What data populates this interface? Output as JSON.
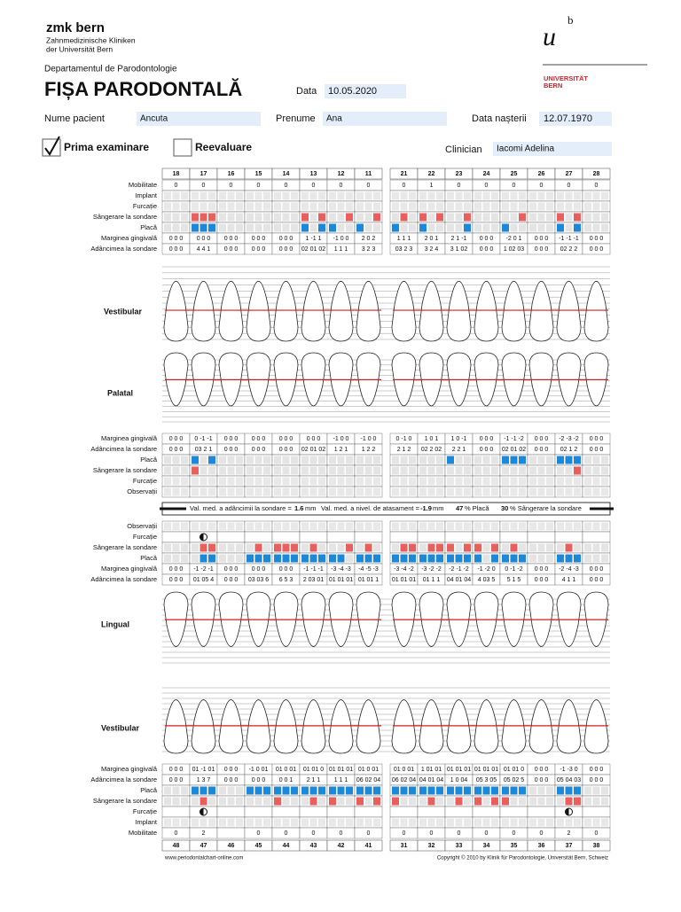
{
  "header": {
    "brand": "zmk bern",
    "clinic_line1": "Zahnmedizinische Kliniken",
    "clinic_line2": "der Universität Bern",
    "logo_u": "u",
    "logo_b": "b",
    "university": "UNIVERSITÄT",
    "university_city": "BERN",
    "department": "Departamentul de Parodontologie",
    "title": "FIȘA PARODONTALĂ"
  },
  "form": {
    "date_label": "Data",
    "date": "10.05.2020",
    "name_label": "Nume pacient",
    "name": "Ancuta",
    "first_name_label": "Prenume",
    "first_name": "Ana",
    "birth_label": "Data nașterii",
    "birth_date": "12.07.1970",
    "first_exam": "Prima examinare",
    "reevaluation": "Reevaluare",
    "clinician_label": "Clinician",
    "clinician": "Iacomi Adelina"
  },
  "upper": {
    "teeth": [
      "18",
      "17",
      "16",
      "15",
      "14",
      "13",
      "12",
      "11",
      "21",
      "22",
      "23",
      "24",
      "25",
      "26",
      "27",
      "28"
    ],
    "vestibular_label": "Vestibular",
    "palatal_label": "Palatal",
    "rows_top": [
      {
        "label": "Mobilitate",
        "values": [
          0,
          0,
          0,
          0,
          0,
          0,
          0,
          0,
          0,
          1,
          0,
          0,
          0,
          0,
          0,
          0
        ]
      },
      {
        "label": "Implant"
      },
      {
        "label": "Furcație"
      },
      {
        "label": "Sângerare la sondare",
        "color": "#e8605e",
        "sites": [
          [
            0,
            0,
            0
          ],
          [
            1,
            1,
            1
          ],
          [
            0,
            0,
            0
          ],
          [
            0,
            0,
            0
          ],
          [
            0,
            0,
            0
          ],
          [
            1,
            0,
            1
          ],
          [
            0,
            0,
            1
          ],
          [
            0,
            0,
            1
          ],
          [
            0,
            1,
            0
          ],
          [
            1,
            0,
            1
          ],
          [
            0,
            0,
            1
          ],
          [
            0,
            0,
            0
          ],
          [
            0,
            0,
            1
          ],
          [
            0,
            0,
            0
          ],
          [
            1,
            0,
            1
          ],
          [
            0,
            0,
            0
          ]
        ]
      },
      {
        "label": "Placă",
        "color": "#1e88d8",
        "sites": [
          [
            0,
            0,
            0
          ],
          [
            1,
            1,
            1
          ],
          [
            0,
            0,
            0
          ],
          [
            0,
            0,
            0
          ],
          [
            0,
            0,
            0
          ],
          [
            1,
            0,
            1
          ],
          [
            1,
            0,
            0
          ],
          [
            1,
            0,
            0
          ],
          [
            1,
            0,
            0
          ],
          [
            1,
            0,
            0
          ],
          [
            0,
            0,
            1
          ],
          [
            0,
            0,
            0
          ],
          [
            1,
            0,
            0
          ],
          [
            0,
            0,
            0
          ],
          [
            1,
            0,
            1
          ],
          [
            0,
            0,
            0
          ]
        ]
      },
      {
        "label": "Marginea gingivală",
        "values": [
          "0 0 0",
          "0 0 0",
          "0 0 0",
          "0 0 0",
          "0 0 0",
          "1 -1 1",
          "-1 0 0",
          "2 0 2",
          "1 1 1",
          "2 0 1",
          "2 1 -1",
          "0 0 0",
          "-2 0 1",
          "0 0 0",
          "-1 -1 -1",
          "0 0 0"
        ]
      },
      {
        "label": "Adâncimea la sondare",
        "values": [
          "0 0 0",
          "4 4 1",
          "0 0 0",
          "0 0 0",
          "0 0 0",
          "02 01 02",
          "1 1 1",
          "3 2 3",
          "03 2 3",
          "3 2 4",
          "3 1 02",
          "0 0 0",
          "1 02 03",
          "0 0 0",
          "02 2 2",
          "0 0 0"
        ]
      }
    ],
    "rows_palatal": [
      {
        "label": "Marginea gingivală",
        "values": [
          "0 0 0",
          "0 -1 -1",
          "0 0 0",
          "0 0 0",
          "0 0 0",
          "0 0 0",
          "-1 0 0",
          "-1 0 0",
          "0 -1 0",
          "1 0 1",
          "1 0 -1",
          "0 0 0",
          "-1 -1 -2",
          "0 0 0",
          "-2 -3 -2",
          "0 0 0"
        ]
      },
      {
        "label": "Adâncimea la sondare",
        "values": [
          "0 0 0",
          "03 2 1",
          "0 0 0",
          "0 0 0",
          "0 0 0",
          "02 01 02",
          "1 2 1",
          "1 2 2",
          "2 1 2",
          "02 2 02",
          "2 2 1",
          "0 0 0",
          "02 01 02",
          "0 0 0",
          "02 1 2",
          "0 0 0"
        ]
      },
      {
        "label": "Placă",
        "color": "#1e88d8",
        "sites": [
          [
            0,
            0,
            0
          ],
          [
            1,
            0,
            1
          ],
          [
            0,
            0,
            0
          ],
          [
            0,
            0,
            0
          ],
          [
            0,
            0,
            0
          ],
          [
            0,
            0,
            0
          ],
          [
            0,
            0,
            0
          ],
          [
            0,
            0,
            0
          ],
          [
            0,
            0,
            0
          ],
          [
            0,
            0,
            0
          ],
          [
            1,
            0,
            0
          ],
          [
            0,
            0,
            0
          ],
          [
            1,
            1,
            1
          ],
          [
            0,
            0,
            0
          ],
          [
            1,
            1,
            1
          ],
          [
            0,
            0,
            0
          ]
        ]
      },
      {
        "label": "Sângerare la sondare",
        "color": "#e8605e",
        "sites": [
          [
            0,
            0,
            0
          ],
          [
            1,
            0,
            0
          ],
          [
            0,
            0,
            0
          ],
          [
            0,
            0,
            0
          ],
          [
            0,
            0,
            0
          ],
          [
            0,
            0,
            0
          ],
          [
            0,
            0,
            0
          ],
          [
            0,
            0,
            0
          ],
          [
            0,
            0,
            0
          ],
          [
            0,
            0,
            0
          ],
          [
            0,
            0,
            0
          ],
          [
            0,
            0,
            0
          ],
          [
            0,
            0,
            0
          ],
          [
            0,
            0,
            0
          ],
          [
            0,
            0,
            1
          ],
          [
            0,
            0,
            0
          ]
        ]
      },
      {
        "label": "Furcație"
      },
      {
        "label": "Observații"
      }
    ]
  },
  "summary": {
    "depth_label": "Val. med. a adâncimii la sondare =",
    "depth_value": 1.6,
    "depth_unit": "mm",
    "attach_label": "Val. med. a nivel. de atasament =",
    "attach_value": -1.9,
    "attach_unit": "mm",
    "plaque_value": 47,
    "plaque_label": "% Placă",
    "bleeding_value": 30,
    "bleeding_label": "% Sângerare la sondare"
  },
  "lower": {
    "teeth": [
      "48",
      "47",
      "46",
      "45",
      "44",
      "43",
      "42",
      "41",
      "31",
      "32",
      "33",
      "34",
      "35",
      "36",
      "37",
      "38"
    ],
    "lingual_label": "Lingual",
    "vestibular_label": "Vestibular",
    "rows_lingual": [
      {
        "label": "Observații"
      },
      {
        "label": "Furcație",
        "furcation": [
          0,
          1,
          0,
          0,
          0,
          0,
          0,
          0,
          0,
          0,
          0,
          0,
          0,
          0,
          0,
          0
        ]
      },
      {
        "label": "Sângerare la sondare",
        "color": "#e8605e",
        "sites": [
          [
            0,
            0,
            0
          ],
          [
            0,
            1,
            1
          ],
          [
            0,
            0,
            0
          ],
          [
            0,
            1,
            0
          ],
          [
            1,
            1,
            1
          ],
          [
            0,
            1,
            0
          ],
          [
            0,
            0,
            1
          ],
          [
            0,
            1,
            0
          ],
          [
            0,
            1,
            1
          ],
          [
            0,
            1,
            1
          ],
          [
            1,
            0,
            1
          ],
          [
            1,
            0,
            1
          ],
          [
            0,
            1,
            0
          ],
          [
            0,
            0,
            0
          ],
          [
            0,
            1,
            0
          ],
          [
            0,
            0,
            0
          ]
        ]
      },
      {
        "label": "Placă",
        "color": "#1e88d8",
        "sites": [
          [
            0,
            0,
            0
          ],
          [
            0,
            1,
            1
          ],
          [
            0,
            0,
            0
          ],
          [
            1,
            1,
            1
          ],
          [
            1,
            1,
            1
          ],
          [
            1,
            1,
            1
          ],
          [
            1,
            1,
            0
          ],
          [
            1,
            1,
            1
          ],
          [
            1,
            1,
            1
          ],
          [
            1,
            1,
            1
          ],
          [
            1,
            1,
            1
          ],
          [
            1,
            0,
            1
          ],
          [
            1,
            1,
            1
          ],
          [
            0,
            0,
            0
          ],
          [
            1,
            1,
            1
          ],
          [
            0,
            0,
            0
          ]
        ]
      },
      {
        "label": "Marginea gingivală",
        "values": [
          "0 0 0",
          "-1 -2 -1",
          "0 0 0",
          "0 0 0",
          "0 0 0",
          "-1 -1 -1",
          "-3 -4 -3",
          "-4 -5 -3",
          "-3 -4 -2",
          "-3 -2 -2",
          "-2 -1 -2",
          "-1 -2 0",
          "0 -1 -2",
          "0 0 0",
          "-2 -4 -3",
          "0 0 0"
        ]
      },
      {
        "label": "Adâncimea la sondare",
        "values": [
          "0 0 0",
          "01 05 4",
          "0 0 0",
          "03 03 6",
          "6 5 3",
          "2 03 01",
          "01 01 01",
          "01 01 1",
          "01 01 01",
          "01 1 1",
          "04 01 04",
          "4 03 5",
          "5 1 5",
          "0 0 0",
          "4 1 1",
          "0 0 0"
        ]
      }
    ],
    "rows_vestibular": [
      {
        "label": "Marginea gingivală",
        "values": [
          "0 0 0",
          "01 -1 01",
          "0 0 0",
          "-1 0 01",
          "01 0 01",
          "01 01 0",
          "01 01 01",
          "01 0 01",
          "01 0 01",
          "1 01 01",
          "01 01 01",
          "01 01 01",
          "01 01 0",
          "0 0 0",
          "-1 -3 0",
          "0 0 0"
        ]
      },
      {
        "label": "Adâncimea la sondare",
        "values": [
          "0 0 0",
          "1 3 7",
          "0 0 0",
          "0 0 0",
          "0 0 1",
          "2 1 1",
          "1 1 1",
          "06 02 04",
          "06 02 04",
          "04 01 04",
          "1 0 04",
          "05 3 05",
          "05 02 5",
          "0 0 0",
          "05 04 03",
          "0 0 0"
        ]
      },
      {
        "label": "Placă",
        "color": "#1e88d8",
        "sites": [
          [
            0,
            0,
            0
          ],
          [
            1,
            1,
            1
          ],
          [
            0,
            0,
            0
          ],
          [
            1,
            1,
            1
          ],
          [
            1,
            1,
            1
          ],
          [
            1,
            1,
            1
          ],
          [
            1,
            1,
            1
          ],
          [
            1,
            1,
            1
          ],
          [
            1,
            1,
            1
          ],
          [
            1,
            1,
            1
          ],
          [
            1,
            1,
            1
          ],
          [
            1,
            1,
            1
          ],
          [
            1,
            1,
            1
          ],
          [
            0,
            0,
            0
          ],
          [
            1,
            1,
            1
          ],
          [
            0,
            0,
            0
          ]
        ]
      },
      {
        "label": "Sângerare la sondare",
        "color": "#e8605e",
        "sites": [
          [
            0,
            0,
            0
          ],
          [
            0,
            1,
            0
          ],
          [
            0,
            0,
            0
          ],
          [
            0,
            0,
            0
          ],
          [
            1,
            0,
            0
          ],
          [
            0,
            1,
            0
          ],
          [
            1,
            0,
            0
          ],
          [
            1,
            0,
            1
          ],
          [
            1,
            0,
            0
          ],
          [
            0,
            1,
            0
          ],
          [
            0,
            1,
            0
          ],
          [
            1,
            0,
            1
          ],
          [
            1,
            0,
            0
          ],
          [
            0,
            0,
            0
          ],
          [
            0,
            1,
            1
          ],
          [
            0,
            0,
            0
          ]
        ]
      },
      {
        "label": "Furcație",
        "furcation": [
          0,
          1,
          0,
          0,
          0,
          0,
          0,
          0,
          0,
          0,
          0,
          0,
          0,
          0,
          1,
          0
        ]
      },
      {
        "label": "Implant"
      },
      {
        "label": "Mobilitate",
        "values": [
          0,
          2,
          null,
          0,
          0,
          0,
          0,
          0,
          0,
          0,
          0,
          0,
          0,
          0,
          2,
          0
        ]
      }
    ]
  },
  "footer": {
    "website": "www.periodontalchart-online.com",
    "copyright": "Copyright © 2010 by Klinik für Parodontologie, Universität Bern, Schweiz"
  }
}
